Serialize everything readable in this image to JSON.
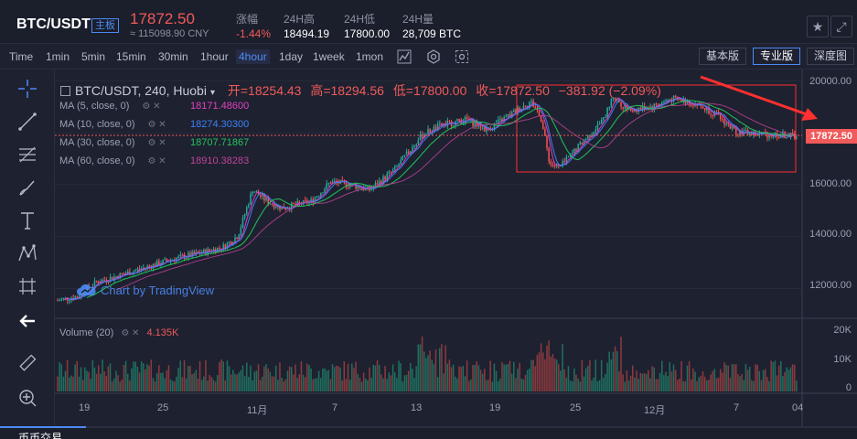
{
  "header": {
    "pair": "BTC/USDT",
    "board_tag": "主板",
    "last_price": "17872.50",
    "cny_price": "≈ 115098.90 CNY",
    "stats": [
      {
        "label": "涨幅",
        "value": "-1.44%"
      },
      {
        "label": "24H高",
        "value": "18494.19"
      },
      {
        "label": "24H低",
        "value": "17800.00"
      },
      {
        "label": "24H量",
        "value": "28,709 BTC"
      }
    ],
    "icons": [
      "star-icon",
      "fullscreen-icon"
    ]
  },
  "toolbar": {
    "timeframes": [
      "Time",
      "1min",
      "5min",
      "15min",
      "30min",
      "1hour",
      "4hour",
      "1day",
      "1week",
      "1mon"
    ],
    "active_timeframe": "4hour",
    "icons": [
      "indicator-icon",
      "settings-icon",
      "screenshot-icon"
    ],
    "views": [
      "基本版",
      "专业版",
      "深度图"
    ],
    "active_view": "专业版"
  },
  "left_tools": [
    "crosshair-icon",
    "trendline-icon",
    "fib-icon",
    "brush-icon",
    "text-icon",
    "pattern-icon",
    "measure-icon",
    "back-arrow-icon",
    "ruler-icon",
    "zoom-in-icon"
  ],
  "chart": {
    "legend": {
      "symbol": "BTC/USDT, 240, Huobi",
      "open": "开=18254.43",
      "high": "高=18294.56",
      "low": "低=17800.00",
      "close": "收=17872.50",
      "change": "−381.92 (−2.09%)"
    },
    "mas": [
      {
        "label": "MA (5, close, 0)",
        "value": "18171.48600",
        "color": "#e040c0"
      },
      {
        "label": "MA (10, close, 0)",
        "value": "18274.30300",
        "color": "#3b82f6"
      },
      {
        "label": "MA (30, close, 0)",
        "value": "18707.71867",
        "color": "#22c55e"
      },
      {
        "label": "MA (60, close, 0)",
        "value": "18910.38283",
        "color": "#c0439a"
      }
    ],
    "watermark": "Chart by TradingView",
    "y_axis": [
      "20000.00",
      "18000.00",
      "16000.00",
      "14000.00",
      "12000.00"
    ],
    "current_price_tag": "17872.50",
    "volume_legend": {
      "label": "Volume (20)",
      "value": "4.135K"
    },
    "vol_axis": [
      "20K",
      "10K",
      "0"
    ],
    "x_axis": [
      "19",
      "25",
      "11月",
      "7",
      "13",
      "19",
      "25",
      "12月",
      "7",
      "04"
    ]
  },
  "bottom": {
    "tab": "币币交易"
  },
  "colors": {
    "up": "#26a69a",
    "down": "#ef5350",
    "accent": "#4c8bf5",
    "annotation": "#ff3030"
  }
}
